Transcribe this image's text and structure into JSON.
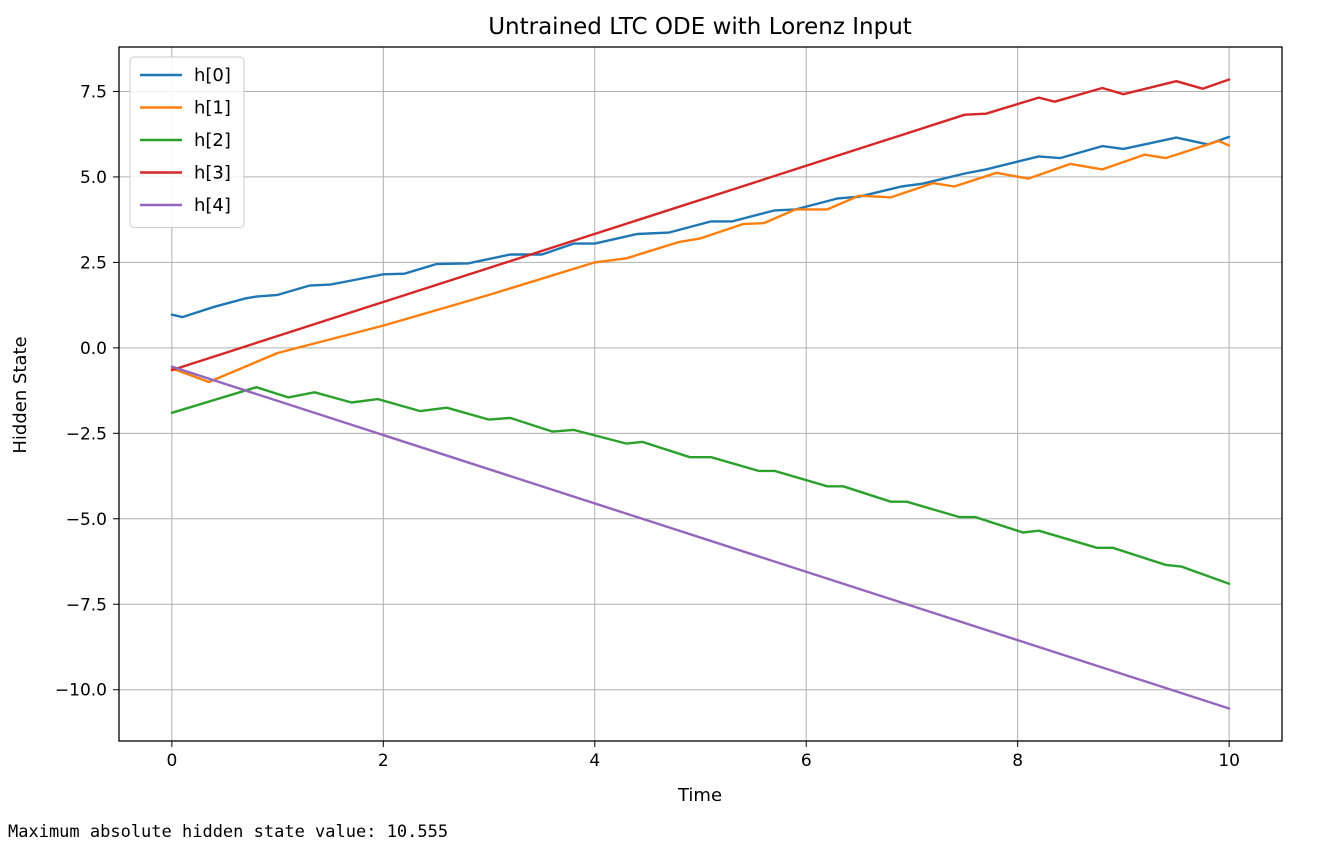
{
  "chart_data": {
    "type": "line",
    "title": "Untrained LTC ODE with Lorenz Input",
    "xlabel": "Time",
    "ylabel": "Hidden State",
    "xlim": [
      -0.5,
      10.5
    ],
    "ylim": [
      -11.5,
      8.8
    ],
    "xticks": [
      0,
      2,
      4,
      6,
      8,
      10
    ],
    "xtick_labels": [
      "0",
      "2",
      "4",
      "6",
      "8",
      "10"
    ],
    "yticks": [
      -10,
      -7.5,
      -5,
      -2.5,
      0,
      2.5,
      5,
      7.5
    ],
    "ytick_labels": [
      "−10.0",
      "−7.5",
      "−5.0",
      "−2.5",
      "0.0",
      "2.5",
      "5.0",
      "7.5"
    ],
    "grid": true,
    "legend_position": "top-left",
    "series": [
      {
        "name": "h[0]",
        "color": "#1f77b4",
        "x": [
          0,
          0.1,
          0.4,
          0.7,
          0.8,
          1.0,
          1.3,
          1.5,
          1.7,
          2.0,
          2.2,
          2.5,
          2.8,
          3.2,
          3.5,
          3.8,
          4.0,
          4.4,
          4.7,
          5.1,
          5.3,
          5.7,
          5.9,
          6.3,
          6.5,
          6.9,
          7.1,
          7.5,
          7.7,
          8.2,
          8.4,
          8.8,
          9.0,
          9.5,
          9.8,
          10.0
        ],
        "values": [
          0.97,
          0.9,
          1.2,
          1.45,
          1.5,
          1.55,
          1.82,
          1.85,
          1.97,
          2.15,
          2.17,
          2.45,
          2.47,
          2.73,
          2.73,
          3.05,
          3.05,
          3.33,
          3.37,
          3.7,
          3.7,
          4.02,
          4.05,
          4.37,
          4.42,
          4.72,
          4.8,
          5.1,
          5.22,
          5.6,
          5.55,
          5.9,
          5.82,
          6.15,
          5.95,
          6.17
        ]
      },
      {
        "name": "h[1]",
        "color": "#ff7f0e",
        "x": [
          0,
          0.35,
          1.0,
          2.0,
          3.0,
          4.0,
          4.3,
          4.8,
          5.0,
          5.4,
          5.6,
          5.9,
          6.2,
          6.5,
          6.8,
          7.2,
          7.4,
          7.8,
          8.1,
          8.5,
          8.8,
          9.2,
          9.4,
          9.9,
          10.0
        ],
        "values": [
          -0.6,
          -1.0,
          -0.15,
          0.65,
          1.55,
          2.5,
          2.62,
          3.1,
          3.2,
          3.62,
          3.65,
          4.05,
          4.05,
          4.45,
          4.4,
          4.82,
          4.72,
          5.12,
          4.95,
          5.38,
          5.22,
          5.65,
          5.55,
          6.05,
          5.92
        ]
      },
      {
        "name": "h[2]",
        "color": "#2ca02c",
        "x": [
          0,
          0.8,
          1.1,
          1.35,
          1.7,
          1.95,
          2.35,
          2.6,
          3.0,
          3.2,
          3.6,
          3.8,
          4.3,
          4.45,
          4.9,
          5.1,
          5.55,
          5.7,
          6.2,
          6.35,
          6.8,
          6.95,
          7.45,
          7.6,
          8.05,
          8.2,
          8.75,
          8.9,
          9.4,
          9.55,
          10.0
        ],
        "values": [
          -1.9,
          -1.15,
          -1.45,
          -1.3,
          -1.6,
          -1.5,
          -1.85,
          -1.75,
          -2.1,
          -2.05,
          -2.45,
          -2.4,
          -2.8,
          -2.75,
          -3.2,
          -3.2,
          -3.6,
          -3.6,
          -4.05,
          -4.05,
          -4.5,
          -4.5,
          -4.95,
          -4.95,
          -5.4,
          -5.35,
          -5.85,
          -5.85,
          -6.35,
          -6.4,
          -6.9
        ]
      },
      {
        "name": "h[3]",
        "color": "#d62728",
        "x": [
          0,
          7.5,
          7.7,
          8.2,
          8.35,
          8.8,
          9.0,
          9.5,
          9.75,
          10.0
        ],
        "values": [
          -0.65,
          6.82,
          6.85,
          7.32,
          7.2,
          7.6,
          7.42,
          7.8,
          7.58,
          7.85
        ]
      },
      {
        "name": "h[4]",
        "color": "#9467bd",
        "x": [
          0,
          10.0
        ],
        "values": [
          -0.55,
          -10.55
        ]
      }
    ]
  },
  "output": {
    "text": "Maximum absolute hidden state value: 10.555"
  }
}
